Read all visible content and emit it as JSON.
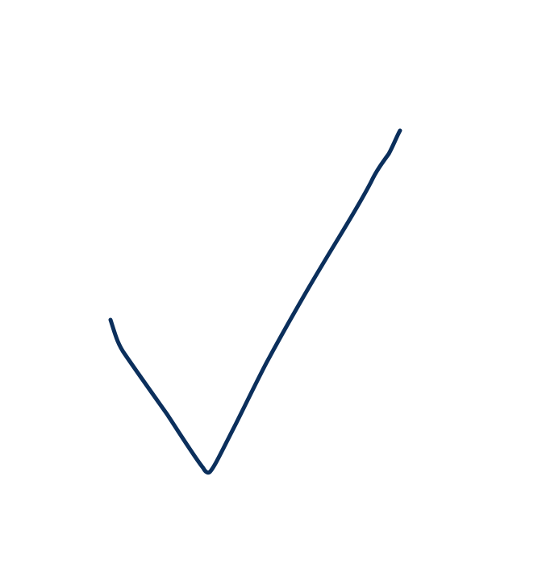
{
  "canvas": {
    "background_color": "#ffffff"
  },
  "checkmark": {
    "icon": "checkmark-icon",
    "stroke_color": "#0b2f5c"
  }
}
